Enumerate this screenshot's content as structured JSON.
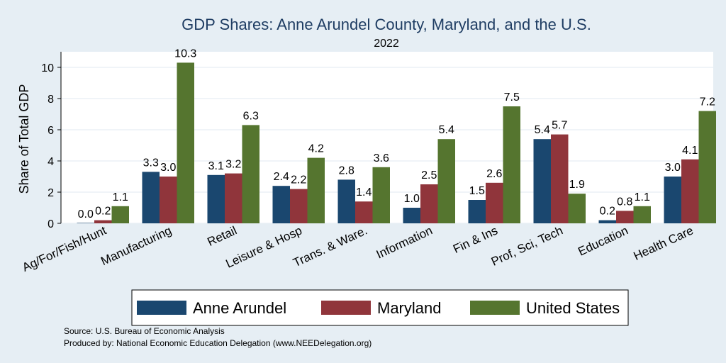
{
  "chart_data": {
    "type": "bar",
    "title": "GDP Shares: Anne Arundel County, Maryland, and the U.S.",
    "subtitle": "2022",
    "ylabel": "Share of Total GDP",
    "xlabel": "",
    "ylim": [
      0,
      11
    ],
    "yticks": [
      0,
      2,
      4,
      6,
      8,
      10
    ],
    "grid": true,
    "legend_position": "bottom",
    "categories": [
      "Ag/For/Fish/Hunt",
      "Manufacturing",
      "Retail",
      "Leisure & Hosp",
      "Trans. & Ware.",
      "Information",
      "Fin & Ins",
      "Prof, Sci, Tech",
      "Education",
      "Health Care"
    ],
    "series": [
      {
        "name": "Anne Arundel",
        "color": "#1a476f",
        "values": [
          0.0,
          3.3,
          3.1,
          2.4,
          2.8,
          1.0,
          1.5,
          5.4,
          0.2,
          3.0
        ],
        "labels": [
          "0.0",
          "3.3",
          "3.1",
          "2.4",
          "2.8",
          "1.0",
          "1.5",
          "5.4",
          "0.2",
          "3.0"
        ]
      },
      {
        "name": "Maryland",
        "color": "#90353b",
        "values": [
          0.2,
          3.0,
          3.2,
          2.2,
          1.4,
          2.5,
          2.6,
          5.7,
          0.8,
          4.1
        ],
        "labels": [
          "0.2",
          "3.0",
          "3.2",
          "2.2",
          "1.4",
          "2.5",
          "2.6",
          "5.7",
          "0.8",
          "4.1"
        ]
      },
      {
        "name": "United States",
        "color": "#55752f",
        "values": [
          1.1,
          10.3,
          6.3,
          4.2,
          3.6,
          5.4,
          7.5,
          1.9,
          1.1,
          7.2
        ],
        "labels": [
          "1.1",
          "10.3",
          "6.3",
          "4.2",
          "3.6",
          "5.4",
          "7.5",
          "1.9",
          "1.1",
          "7.2"
        ]
      }
    ]
  },
  "notes": {
    "source": "Source: U.S. Bureau of Economic Analysis",
    "produced_by": "Produced by: National Economic Education Delegation (www.NEEDelegation.org)"
  }
}
